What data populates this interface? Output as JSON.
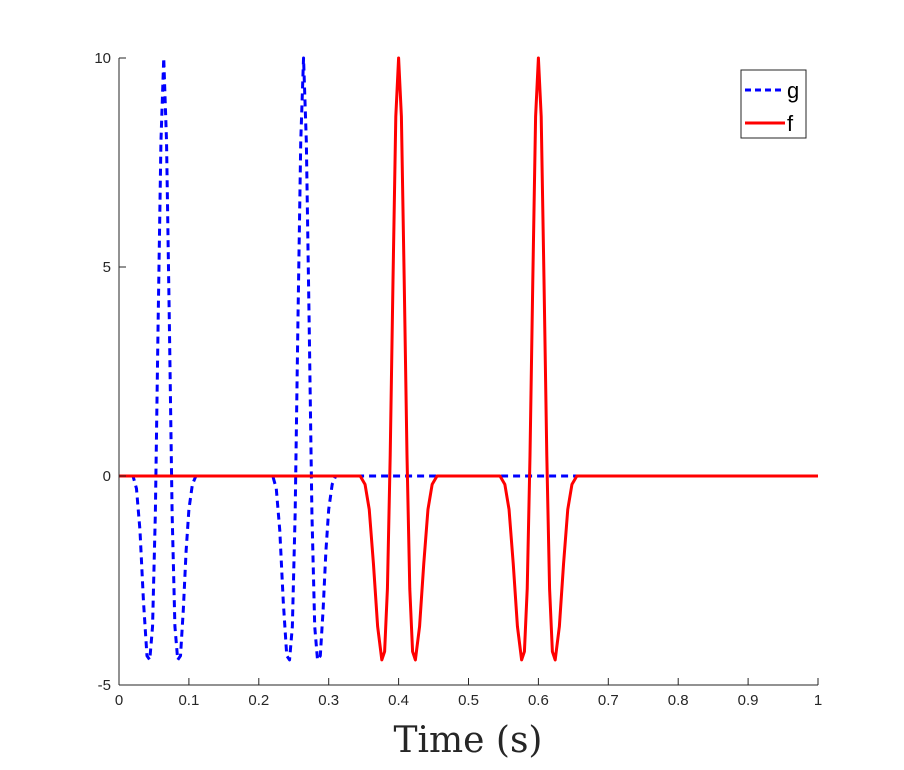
{
  "chart_data": {
    "type": "line",
    "title": "",
    "xlabel": "Time (s)",
    "ylabel": "",
    "xlim": [
      0,
      1
    ],
    "ylim": [
      -5,
      10
    ],
    "grid": false,
    "legend_position": "top-right",
    "x_ticks": [
      "0",
      "0.1",
      "0.2",
      "0.3",
      "0.4",
      "0.5",
      "0.6",
      "0.7",
      "0.8",
      "0.9",
      "1"
    ],
    "y_ticks": [
      "-5",
      "0",
      "5",
      "10"
    ],
    "series": [
      {
        "name": "g",
        "color": "#0000ff",
        "style": "dashed",
        "x": [
          0.0,
          0.02,
          0.025,
          0.03,
          0.035,
          0.04,
          0.044,
          0.048,
          0.052,
          0.056,
          0.06,
          0.064,
          0.068,
          0.072,
          0.076,
          0.08,
          0.084,
          0.088,
          0.092,
          0.096,
          0.1,
          0.105,
          0.11,
          0.22,
          0.225,
          0.23,
          0.235,
          0.24,
          0.244,
          0.248,
          0.252,
          0.256,
          0.26,
          0.264,
          0.268,
          0.272,
          0.276,
          0.28,
          0.284,
          0.288,
          0.292,
          0.296,
          0.3,
          0.305,
          0.31,
          1.0
        ],
        "y": [
          0,
          0,
          -0.3,
          -1.3,
          -3.0,
          -4.3,
          -4.4,
          -3.6,
          -0.9,
          3.7,
          8.0,
          10.0,
          8.0,
          3.7,
          -0.9,
          -3.6,
          -4.4,
          -4.3,
          -3.2,
          -1.8,
          -0.8,
          -0.2,
          0,
          0,
          -0.3,
          -1.3,
          -3.0,
          -4.3,
          -4.4,
          -3.6,
          -0.9,
          3.7,
          8.0,
          10.0,
          8.0,
          3.7,
          -0.9,
          -3.6,
          -4.4,
          -4.3,
          -3.2,
          -1.8,
          -0.8,
          -0.2,
          0,
          0
        ]
      },
      {
        "name": "f",
        "color": "#ff0000",
        "style": "solid",
        "x": [
          0.0,
          0.345,
          0.352,
          0.358,
          0.364,
          0.37,
          0.376,
          0.38,
          0.384,
          0.388,
          0.392,
          0.396,
          0.4,
          0.404,
          0.408,
          0.412,
          0.416,
          0.42,
          0.424,
          0.43,
          0.436,
          0.442,
          0.448,
          0.455,
          0.545,
          0.552,
          0.558,
          0.564,
          0.57,
          0.576,
          0.58,
          0.584,
          0.588,
          0.592,
          0.596,
          0.6,
          0.604,
          0.608,
          0.612,
          0.616,
          0.62,
          0.624,
          0.63,
          0.636,
          0.642,
          0.648,
          0.655,
          1.0
        ],
        "y": [
          0,
          0,
          -0.2,
          -0.8,
          -2.1,
          -3.6,
          -4.4,
          -4.2,
          -2.7,
          0.5,
          4.7,
          8.6,
          10.0,
          8.6,
          4.7,
          0.5,
          -2.7,
          -4.2,
          -4.4,
          -3.6,
          -2.1,
          -0.8,
          -0.2,
          0,
          0,
          -0.2,
          -0.8,
          -2.1,
          -3.6,
          -4.4,
          -4.2,
          -2.7,
          0.5,
          4.7,
          8.6,
          10.0,
          8.6,
          4.7,
          0.5,
          -2.7,
          -4.2,
          -4.4,
          -3.6,
          -2.1,
          -0.8,
          -0.2,
          0,
          0
        ]
      }
    ]
  }
}
